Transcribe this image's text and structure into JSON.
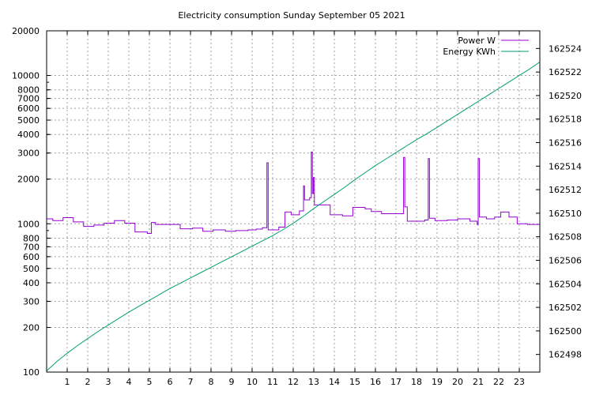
{
  "chart_data": {
    "type": "line",
    "title": "Electricity consumption Sunday September 05 2021",
    "xlabel": "",
    "ylabel": "",
    "y2label": "",
    "xlim": [
      0,
      24
    ],
    "x_ticks": [
      1,
      2,
      3,
      4,
      5,
      6,
      7,
      8,
      9,
      10,
      11,
      12,
      13,
      14,
      15,
      16,
      17,
      18,
      19,
      20,
      21,
      22,
      23
    ],
    "ylim": [
      100,
      20000
    ],
    "yscale": "log",
    "y_ticks": [
      100,
      200,
      300,
      400,
      500,
      600,
      700,
      800,
      1000,
      2000,
      3000,
      4000,
      5000,
      6000,
      7000,
      8000,
      10000,
      20000
    ],
    "y2lim": [
      162496.5,
      162525.5
    ],
    "y2_ticks": [
      162498,
      162500,
      162502,
      162504,
      162506,
      162508,
      162510,
      162512,
      162514,
      162516,
      162518,
      162520,
      162522,
      162524
    ],
    "grid": true,
    "legend_position": "top-right",
    "series": [
      {
        "name": "Power W",
        "color": "#9400d3",
        "axis": "y1",
        "style": "steps",
        "points": [
          [
            0.0,
            1080
          ],
          [
            0.3,
            1050
          ],
          [
            0.8,
            1100
          ],
          [
            1.3,
            1030
          ],
          [
            1.8,
            960
          ],
          [
            2.3,
            980
          ],
          [
            2.8,
            1010
          ],
          [
            3.3,
            1050
          ],
          [
            3.8,
            1010
          ],
          [
            4.3,
            880
          ],
          [
            4.9,
            860
          ],
          [
            5.1,
            1020
          ],
          [
            5.3,
            990
          ],
          [
            5.9,
            990
          ],
          [
            6.5,
            925
          ],
          [
            7.1,
            935
          ],
          [
            7.6,
            890
          ],
          [
            8.1,
            910
          ],
          [
            8.7,
            890
          ],
          [
            9.2,
            900
          ],
          [
            9.8,
            910
          ],
          [
            10.2,
            920
          ],
          [
            10.5,
            940
          ],
          [
            10.72,
            2580
          ],
          [
            10.78,
            910
          ],
          [
            11.3,
            950
          ],
          [
            11.6,
            1200
          ],
          [
            11.9,
            1150
          ],
          [
            12.3,
            1220
          ],
          [
            12.5,
            1800
          ],
          [
            12.55,
            1450
          ],
          [
            12.8,
            1500
          ],
          [
            12.88,
            3050
          ],
          [
            12.93,
            1600
          ],
          [
            12.98,
            2050
          ],
          [
            13.03,
            1340
          ],
          [
            13.8,
            1150
          ],
          [
            14.4,
            1130
          ],
          [
            14.9,
            1290
          ],
          [
            15.5,
            1260
          ],
          [
            15.8,
            1210
          ],
          [
            16.3,
            1170
          ],
          [
            16.7,
            1170
          ],
          [
            17.37,
            2800
          ],
          [
            17.43,
            1300
          ],
          [
            17.55,
            1040
          ],
          [
            18.4,
            1060
          ],
          [
            18.57,
            2750
          ],
          [
            18.63,
            1090
          ],
          [
            18.9,
            1050
          ],
          [
            19.5,
            1060
          ],
          [
            20.0,
            1080
          ],
          [
            20.6,
            1040
          ],
          [
            20.95,
            990
          ],
          [
            21.0,
            2750
          ],
          [
            21.06,
            1110
          ],
          [
            21.4,
            1080
          ],
          [
            21.8,
            1110
          ],
          [
            22.1,
            1200
          ],
          [
            22.5,
            1110
          ],
          [
            22.9,
            1000
          ],
          [
            23.4,
            990
          ],
          [
            24.0,
            990
          ]
        ]
      },
      {
        "name": "Energy KWh",
        "color": "#009e73",
        "axis": "y2",
        "style": "line",
        "points": [
          [
            0.0,
            162496.6
          ],
          [
            0.5,
            162497.4
          ],
          [
            1.0,
            162498.1
          ],
          [
            1.5,
            162498.75
          ],
          [
            2.0,
            162499.35
          ],
          [
            2.5,
            162499.95
          ],
          [
            3.0,
            162500.5
          ],
          [
            3.5,
            162501.05
          ],
          [
            4.0,
            162501.6
          ],
          [
            4.5,
            162502.1
          ],
          [
            5.0,
            162502.6
          ],
          [
            5.5,
            162503.1
          ],
          [
            6.0,
            162503.6
          ],
          [
            6.5,
            162504.05
          ],
          [
            7.0,
            162504.5
          ],
          [
            7.5,
            162504.95
          ],
          [
            8.0,
            162505.4
          ],
          [
            8.5,
            162505.85
          ],
          [
            9.0,
            162506.3
          ],
          [
            9.5,
            162506.75
          ],
          [
            10.0,
            162507.2
          ],
          [
            10.5,
            162507.65
          ],
          [
            11.0,
            162508.1
          ],
          [
            11.5,
            162508.6
          ],
          [
            12.0,
            162509.15
          ],
          [
            12.5,
            162509.75
          ],
          [
            13.0,
            162510.4
          ],
          [
            13.5,
            162511.0
          ],
          [
            14.0,
            162511.6
          ],
          [
            14.5,
            162512.2
          ],
          [
            15.0,
            162512.85
          ],
          [
            15.5,
            162513.45
          ],
          [
            16.0,
            162514.05
          ],
          [
            16.5,
            162514.6
          ],
          [
            17.0,
            162515.15
          ],
          [
            17.5,
            162515.7
          ],
          [
            18.0,
            162516.25
          ],
          [
            18.5,
            162516.75
          ],
          [
            19.0,
            162517.3
          ],
          [
            19.5,
            162517.85
          ],
          [
            20.0,
            162518.4
          ],
          [
            20.5,
            162518.95
          ],
          [
            21.0,
            162519.5
          ],
          [
            21.5,
            162520.05
          ],
          [
            22.0,
            162520.6
          ],
          [
            22.5,
            162521.15
          ],
          [
            23.0,
            162521.7
          ],
          [
            23.5,
            162522.25
          ],
          [
            24.0,
            162522.85
          ]
        ]
      }
    ]
  }
}
